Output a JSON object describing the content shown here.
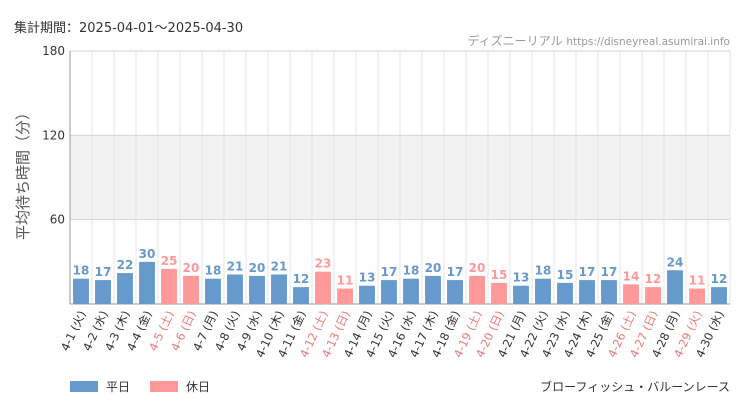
{
  "header": {
    "period": "集計期間：2025-04-01～2025-04-30",
    "site_name": "ディズニーリアル",
    "site_url": "https://disneyreal.asumirai.info"
  },
  "attraction_name": "ブローフィッシュ・バルーンレース",
  "colors": {
    "weekday": "#6699cc",
    "holiday": "#ff9999",
    "band": "#f2f2f2",
    "grid": "#e6e6e6"
  },
  "chart_data": {
    "type": "bar",
    "title": "",
    "xlabel": "",
    "ylabel": "平均待ち時間（分）",
    "ylim": [
      0,
      180
    ],
    "yticks": [
      60,
      120,
      180
    ],
    "band_range": [
      60,
      120
    ],
    "grid": true,
    "legend_position": "bottom-left",
    "categories": [
      "4-1 (火)",
      "4-2 (水)",
      "4-3 (木)",
      "4-4 (金)",
      "4-5 (土)",
      "4-6 (日)",
      "4-7 (月)",
      "4-8 (火)",
      "4-9 (水)",
      "4-10 (木)",
      "4-11 (金)",
      "4-12 (土)",
      "4-13 (日)",
      "4-14 (月)",
      "4-15 (火)",
      "4-16 (水)",
      "4-17 (木)",
      "4-18 (金)",
      "4-19 (土)",
      "4-20 (日)",
      "4-21 (月)",
      "4-22 (火)",
      "4-23 (水)",
      "4-24 (木)",
      "4-25 (金)",
      "4-26 (土)",
      "4-27 (日)",
      "4-28 (月)",
      "4-29 (火)",
      "4-30 (水)"
    ],
    "values": [
      18,
      17,
      22,
      30,
      25,
      20,
      18,
      21,
      20,
      21,
      12,
      23,
      11,
      13,
      17,
      18,
      20,
      17,
      20,
      15,
      13,
      18,
      15,
      17,
      17,
      14,
      12,
      24,
      11,
      12
    ],
    "day_type": [
      "weekday",
      "weekday",
      "weekday",
      "weekday",
      "holiday",
      "holiday",
      "weekday",
      "weekday",
      "weekday",
      "weekday",
      "weekday",
      "holiday",
      "holiday",
      "weekday",
      "weekday",
      "weekday",
      "weekday",
      "weekday",
      "holiday",
      "holiday",
      "weekday",
      "weekday",
      "weekday",
      "weekday",
      "weekday",
      "holiday",
      "holiday",
      "weekday",
      "holiday",
      "weekday"
    ],
    "legend": [
      {
        "key": "weekday",
        "label": "平日"
      },
      {
        "key": "holiday",
        "label": "休日"
      }
    ]
  }
}
